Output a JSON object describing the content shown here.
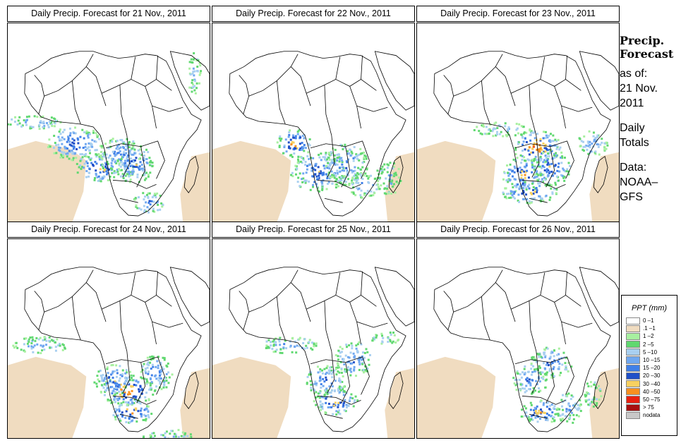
{
  "panels": [
    {
      "title": "Daily Precip. Forecast for  21 Nov., 2011",
      "day": 0
    },
    {
      "title": "Daily Precip. Forecast for  22 Nov., 2011",
      "day": 1
    },
    {
      "title": "Daily Precip. Forecast for  23 Nov., 2011",
      "day": 2
    },
    {
      "title": "Daily Precip. Forecast for  24 Nov., 2011",
      "day": 3
    },
    {
      "title": "Daily Precip. Forecast for  25 Nov., 2011",
      "day": 4
    },
    {
      "title": "Daily Precip. Forecast for  26 Nov., 2011",
      "day": 5
    }
  ],
  "sidebar": {
    "heading_line1": "Precip.",
    "heading_line2": "Forecast",
    "as_of": "as of:",
    "date_line1": "21 Nov.",
    "date_line2": "2011",
    "totals_line1": "Daily",
    "totals_line2": "Totals",
    "data_line1": "Data:",
    "data_line2": "NOAA–",
    "data_line3": "GFS"
  },
  "legend": {
    "title": "PPT (mm)",
    "items": [
      {
        "label": "0 –1",
        "color": "#ffffff"
      },
      {
        "label": ".1 –1",
        "color": "#f0dcc0"
      },
      {
        "label": "1 –2",
        "color": "#a8f0a0"
      },
      {
        "label": "2 –5",
        "color": "#60d870"
      },
      {
        "label": "5 –10",
        "color": "#a8cff0"
      },
      {
        "label": "10 –15",
        "color": "#70a8f0"
      },
      {
        "label": "15 –20",
        "color": "#4080e8"
      },
      {
        "label": "20 –30",
        "color": "#2050c8"
      },
      {
        "label": "30 –40",
        "color": "#f8d060"
      },
      {
        "label": "40 –50",
        "color": "#f89020"
      },
      {
        "label": "50 –75",
        "color": "#e82010"
      },
      {
        "label": "> 75",
        "color": "#a81010"
      },
      {
        "label": "nodata",
        "color": "#c8c8c8"
      }
    ]
  }
}
